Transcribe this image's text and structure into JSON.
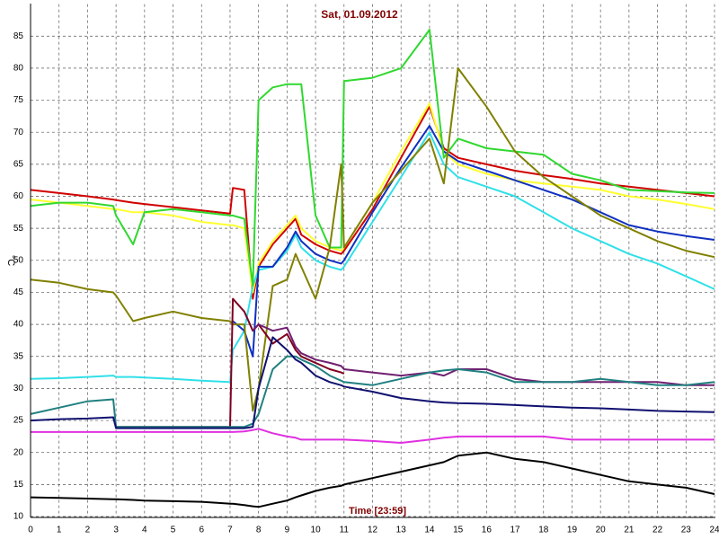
{
  "chart_data": {
    "type": "line",
    "title": "Sat, 01.09.2012",
    "x_label": "Time [23:59]",
    "y_label": "°C",
    "xlim": [
      0,
      24
    ],
    "xticks": [
      0,
      1,
      2,
      3,
      4,
      5,
      6,
      7,
      8,
      9,
      10,
      11,
      12,
      13,
      14,
      15,
      16,
      17,
      18,
      19,
      20,
      21,
      22,
      23,
      24
    ],
    "ylim": [
      10,
      90
    ],
    "yticks": [
      10,
      15,
      20,
      25,
      30,
      35,
      40,
      45,
      50,
      55,
      60,
      65,
      70,
      75,
      80,
      85
    ],
    "grid": true,
    "x": [
      0,
      1,
      2,
      2.9,
      3,
      3.6,
      4,
      5,
      6,
      7,
      7.1,
      7.5,
      7.8,
      8,
      8.5,
      9,
      9.3,
      9.5,
      10,
      10.5,
      10.9,
      11,
      12,
      13,
      14,
      14.5,
      15,
      16,
      17,
      18,
      19,
      20,
      21,
      22,
      23,
      24
    ],
    "series": [
      {
        "color": "#d00000",
        "values": [
          61,
          60.5,
          60,
          59.5,
          59.4,
          59,
          58.8,
          58.3,
          57.8,
          57.3,
          61.3,
          61,
          44,
          49,
          52.5,
          55,
          56.5,
          54,
          52.5,
          51.5,
          51,
          51.5,
          58,
          66,
          74,
          67.5,
          66,
          65,
          64,
          63.3,
          62.7,
          62,
          61.5,
          61,
          60.5,
          60
        ]
      },
      {
        "color": "#ffff30",
        "values": [
          59.5,
          59,
          58.5,
          58,
          58,
          57.5,
          57.5,
          57,
          56,
          55.5,
          55.5,
          55,
          45,
          49.5,
          53,
          55.5,
          57,
          55,
          53,
          52,
          51.5,
          52,
          59,
          67,
          74.5,
          67,
          65,
          63.5,
          62.5,
          62,
          61.5,
          61,
          60,
          59.5,
          58.8,
          58
        ]
      },
      {
        "color": "#30e0e8",
        "values": [
          31.5,
          31.6,
          31.8,
          32,
          31.8,
          31.8,
          31.7,
          31.5,
          31.2,
          31,
          36,
          39,
          46,
          48.5,
          49,
          51.5,
          54,
          52,
          50,
          49,
          48.5,
          49,
          56,
          63,
          70,
          65,
          63,
          61.5,
          60,
          57.5,
          55,
          53,
          51,
          49.5,
          47.5,
          45.5
        ]
      },
      {
        "color": "#1030c0",
        "values": [
          null,
          null,
          null,
          null,
          null,
          null,
          null,
          null,
          null,
          null,
          40.5,
          39,
          35,
          49,
          49,
          52,
          54.5,
          53,
          51,
          50,
          49.5,
          50,
          57.5,
          64.5,
          71,
          67,
          65.5,
          64,
          62.5,
          61,
          59.5,
          57.5,
          55.5,
          54.5,
          53.8,
          53.2
        ]
      },
      {
        "color": "#30d830",
        "values": [
          58.5,
          59,
          59,
          58.5,
          57,
          52.5,
          57.5,
          58,
          57.5,
          57,
          57,
          56.5,
          46,
          75,
          77,
          77.5,
          77.5,
          77.5,
          57,
          52,
          52,
          78,
          78.5,
          80,
          86,
          66,
          69,
          67.5,
          67,
          66.5,
          63.5,
          62.5,
          61,
          60.8,
          60.6,
          60.5
        ]
      },
      {
        "color": "#808000",
        "values": [
          47,
          46.5,
          45.5,
          45,
          44.5,
          40.5,
          41,
          42,
          41,
          40.5,
          40,
          40,
          26.5,
          30,
          46,
          47,
          51,
          49,
          44,
          52,
          65,
          52,
          59,
          64,
          69,
          62,
          80,
          74,
          67,
          63,
          60,
          57,
          55,
          53,
          51.5,
          50.5
        ]
      },
      {
        "color": "#800020",
        "values": [
          null,
          null,
          null,
          null,
          24,
          24,
          24,
          24,
          24,
          24,
          44,
          42,
          39,
          40,
          37,
          38.5,
          36,
          35,
          34,
          33,
          32.5,
          32.3,
          null,
          null,
          null,
          null,
          null,
          null,
          null,
          null,
          null,
          null,
          null,
          null,
          null,
          null
        ]
      },
      {
        "color": "#702070",
        "values": [
          null,
          null,
          null,
          null,
          null,
          null,
          null,
          null,
          null,
          null,
          null,
          null,
          39,
          40,
          39,
          39.5,
          36.5,
          35.5,
          34.5,
          34,
          33.5,
          33,
          32.5,
          32,
          32.5,
          32,
          33,
          33,
          31.5,
          31,
          31,
          31,
          31,
          31,
          30.5,
          30.5
        ]
      },
      {
        "color": "#208080",
        "values": [
          26,
          27,
          28,
          28.3,
          24,
          24,
          24,
          24,
          24,
          24,
          24,
          24,
          24.5,
          26,
          33,
          35,
          35,
          34.5,
          33.5,
          32,
          31.2,
          31,
          30.5,
          31.5,
          32.5,
          32.8,
          33,
          32.5,
          31,
          31,
          31,
          31.5,
          31,
          30.5,
          30.5,
          31
        ]
      },
      {
        "color": "#101070",
        "values": [
          25,
          25.2,
          25.3,
          25.5,
          23.8,
          23.8,
          23.8,
          23.8,
          23.8,
          23.8,
          23.8,
          23.8,
          24,
          30,
          38,
          36,
          34.5,
          34,
          32,
          31,
          30.5,
          30.3,
          29.5,
          28.5,
          28,
          27.8,
          27.7,
          27.6,
          27.4,
          27.2,
          27,
          26.9,
          26.7,
          26.5,
          26.4,
          26.3
        ]
      },
      {
        "color": "#e030e0",
        "values": [
          23.2,
          23.2,
          23.2,
          23.2,
          23.2,
          23.2,
          23.2,
          23.2,
          23.2,
          23.2,
          23.2,
          23.3,
          23.5,
          23.7,
          23,
          22.5,
          22.3,
          22,
          22,
          22,
          22,
          22,
          21.8,
          21.5,
          22,
          22.3,
          22.5,
          22.5,
          22.5,
          22.5,
          22,
          22,
          22,
          22,
          22,
          22
        ]
      },
      {
        "color": "#000000",
        "values": [
          13,
          12.9,
          12.8,
          12.7,
          12.7,
          12.6,
          12.5,
          12.4,
          12.3,
          12,
          12,
          11.8,
          11.6,
          11.5,
          12,
          12.5,
          13,
          13.3,
          14,
          14.5,
          14.8,
          15,
          16,
          17,
          18,
          18.5,
          19.5,
          20,
          19,
          18.5,
          17.5,
          16.5,
          15.5,
          15,
          14.5,
          13.5
        ]
      }
    ]
  }
}
